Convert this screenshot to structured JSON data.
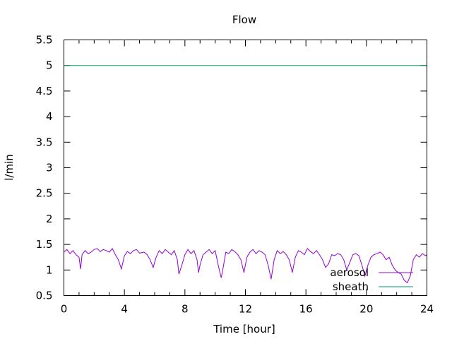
{
  "chart_data": {
    "type": "line",
    "title": "Flow",
    "xlabel": "Time [hour]",
    "ylabel": "l/min",
    "xlim": [
      0,
      24
    ],
    "ylim": [
      0.5,
      5.5
    ],
    "xticks": [
      0,
      4,
      8,
      12,
      16,
      20,
      24
    ],
    "yticks": [
      "0.5",
      "1",
      "1.5",
      "2",
      "2.5",
      "3",
      "3.5",
      "4",
      "4.5",
      "5",
      "5.5"
    ],
    "grid": false,
    "legend_position": "bottom-right",
    "series": [
      {
        "name": "aerosol",
        "color": "#9400d3",
        "x": [
          0,
          0.2,
          0.4,
          0.6,
          0.8,
          1.0,
          1.1,
          1.2,
          1.4,
          1.6,
          1.8,
          2.0,
          2.2,
          2.4,
          2.6,
          2.8,
          3.0,
          3.2,
          3.4,
          3.6,
          3.8,
          4.0,
          4.2,
          4.4,
          4.6,
          4.8,
          5.0,
          5.3,
          5.5,
          5.7,
          5.9,
          6.1,
          6.3,
          6.5,
          6.7,
          6.9,
          7.1,
          7.3,
          7.5,
          7.6,
          7.8,
          8.0,
          8.2,
          8.4,
          8.6,
          8.8,
          8.9,
          9.0,
          9.2,
          9.4,
          9.6,
          9.8,
          10.0,
          10.2,
          10.4,
          10.5,
          10.7,
          10.9,
          11.1,
          11.3,
          11.5,
          11.7,
          11.9,
          12.1,
          12.3,
          12.5,
          12.7,
          12.9,
          13.1,
          13.3,
          13.5,
          13.7,
          13.9,
          14.1,
          14.3,
          14.5,
          14.7,
          14.9,
          15.1,
          15.3,
          15.5,
          15.7,
          15.9,
          16.1,
          16.3,
          16.5,
          16.7,
          16.9,
          17.1,
          17.3,
          17.5,
          17.7,
          17.9,
          18.1,
          18.3,
          18.5,
          18.7,
          18.9,
          19.1,
          19.3,
          19.5,
          19.7,
          19.9,
          20.1,
          20.3,
          20.5,
          20.7,
          20.9,
          21.1,
          21.3,
          21.5,
          21.7,
          21.9,
          22.1,
          22.3,
          22.5,
          22.7,
          22.9,
          23.1,
          23.3,
          23.5,
          23.7,
          23.9,
          24.0
        ],
        "y": [
          1.35,
          1.4,
          1.32,
          1.38,
          1.3,
          1.25,
          1.02,
          1.3,
          1.38,
          1.32,
          1.35,
          1.4,
          1.42,
          1.36,
          1.4,
          1.38,
          1.35,
          1.42,
          1.3,
          1.2,
          1.02,
          1.28,
          1.36,
          1.32,
          1.38,
          1.4,
          1.33,
          1.35,
          1.3,
          1.2,
          1.05,
          1.25,
          1.38,
          1.32,
          1.4,
          1.35,
          1.3,
          1.38,
          1.2,
          0.92,
          1.1,
          1.3,
          1.4,
          1.32,
          1.38,
          1.2,
          0.95,
          1.1,
          1.3,
          1.35,
          1.4,
          1.32,
          1.38,
          1.1,
          0.85,
          1.0,
          1.35,
          1.32,
          1.4,
          1.36,
          1.3,
          1.2,
          0.95,
          1.25,
          1.35,
          1.4,
          1.32,
          1.38,
          1.35,
          1.3,
          1.1,
          0.82,
          1.2,
          1.38,
          1.32,
          1.36,
          1.3,
          1.2,
          0.95,
          1.25,
          1.38,
          1.35,
          1.3,
          1.42,
          1.36,
          1.32,
          1.38,
          1.3,
          1.2,
          1.05,
          1.12,
          1.3,
          1.28,
          1.32,
          1.3,
          1.2,
          1.0,
          1.15,
          1.3,
          1.32,
          1.28,
          1.1,
          0.88,
          1.1,
          1.25,
          1.3,
          1.32,
          1.35,
          1.3,
          1.2,
          1.25,
          1.1,
          1.0,
          0.95,
          0.92,
          0.8,
          0.75,
          0.88,
          1.2,
          1.3,
          1.25,
          1.32,
          1.28,
          1.3
        ]
      },
      {
        "name": "sheath",
        "color": "#009e73",
        "x": [
          0,
          24
        ],
        "y": [
          5.0,
          5.0
        ]
      }
    ]
  }
}
